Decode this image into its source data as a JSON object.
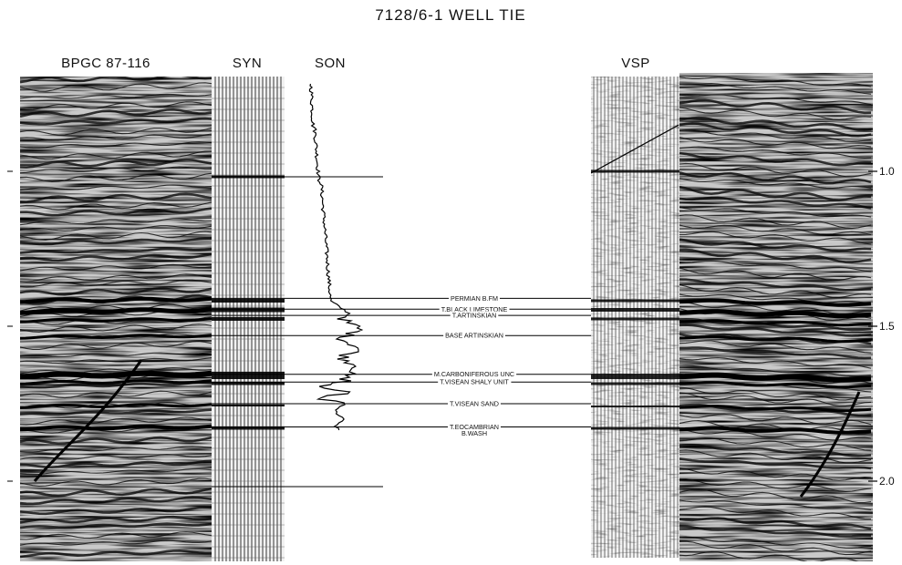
{
  "figure": {
    "title": "7128/6-1 WELL TIE",
    "panels": {
      "seismic_left": "BPGC 87-116",
      "synthetic": "SYN",
      "sonic": "SON",
      "vsp": "VSP"
    },
    "time_axis": {
      "ticks": [
        {
          "value": 1.0,
          "label": "1.0"
        },
        {
          "value": 1.5,
          "label": "1.5"
        },
        {
          "value": 2.0,
          "label": "2.0"
        }
      ]
    },
    "horizons": [
      {
        "label": "PERMIAN B.FM",
        "time": 1.41
      },
      {
        "label": "T.BLACK LIMESTONE",
        "time": 1.445
      },
      {
        "label": "T.ARTINSKIAN",
        "time": 1.465
      },
      {
        "label": "BASE ARTINSKIAN",
        "time": 1.53
      },
      {
        "label": "M.CARBONIFEROUS UNC",
        "time": 1.655
      },
      {
        "label": "T.VISEAN SHALY UNIT",
        "time": 1.68
      },
      {
        "label": "T.VISEAN SAND",
        "time": 1.75
      },
      {
        "label": "T.EOCAMBRIAN",
        "time": 1.825
      },
      {
        "label": "B.WASH",
        "time": 1.845
      }
    ]
  }
}
